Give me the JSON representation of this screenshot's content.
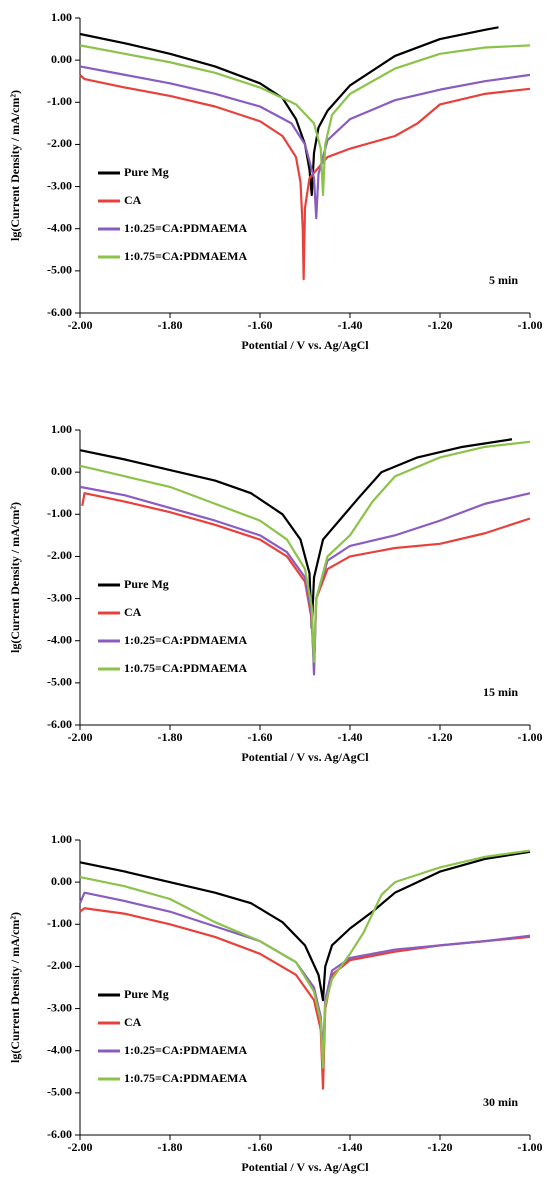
{
  "chart_data": [
    {
      "type": "line",
      "xlabel": "Potential / V vs. Ag/AgCl",
      "ylabel": "lg(Current Density / mA/cm²)",
      "annotation": "5 min",
      "xlim": [
        -2,
        -1
      ],
      "ylim": [
        -6,
        1
      ],
      "xticks": [
        {
          "value": -2,
          "label": "-2.00"
        },
        {
          "value": -1.8,
          "label": "-1.80"
        },
        {
          "value": -1.6,
          "label": "-1.60"
        },
        {
          "value": -1.4,
          "label": "-1.40"
        },
        {
          "value": -1.2,
          "label": "-1.20"
        },
        {
          "value": -1,
          "label": "-1.00"
        }
      ],
      "yticks": [
        {
          "value": 1,
          "label": "1.00"
        },
        {
          "value": 0,
          "label": "0.00"
        },
        {
          "value": -1,
          "label": "-1.00"
        },
        {
          "value": -2,
          "label": "-2.00"
        },
        {
          "value": -3,
          "label": "-3.00"
        },
        {
          "value": -4,
          "label": "-4.00"
        },
        {
          "value": -5,
          "label": "-5.00"
        },
        {
          "value": -6,
          "label": "-6.00"
        }
      ],
      "series": [
        {
          "name": "Pure Mg",
          "color": "#000000",
          "x": [
            -2,
            -1.9,
            -1.8,
            -1.7,
            -1.6,
            -1.55,
            -1.52,
            -1.5,
            -1.49,
            -1.485,
            -1.48,
            -1.47,
            -1.45,
            -1.4,
            -1.3,
            -1.2,
            -1.1,
            -1.07
          ],
          "values": [
            0.62,
            0.4,
            0.15,
            -0.15,
            -0.55,
            -0.9,
            -1.4,
            -2.0,
            -2.6,
            -3.2,
            -2.2,
            -1.6,
            -1.2,
            -0.6,
            0.1,
            0.5,
            0.72,
            0.78
          ]
        },
        {
          "name": "CA",
          "color": "#e8413c",
          "x": [
            -2,
            -1.99,
            -1.9,
            -1.8,
            -1.7,
            -1.6,
            -1.55,
            -1.52,
            -1.51,
            -1.505,
            -1.503,
            -1.5,
            -1.49,
            -1.45,
            -1.4,
            -1.3,
            -1.25,
            -1.2,
            -1.1,
            -1
          ],
          "values": [
            -0.35,
            -0.45,
            -0.65,
            -0.85,
            -1.1,
            -1.45,
            -1.8,
            -2.3,
            -2.9,
            -4.0,
            -5.2,
            -3.5,
            -2.8,
            -2.3,
            -2.1,
            -1.8,
            -1.5,
            -1.05,
            -0.8,
            -0.68
          ]
        },
        {
          "name": "1:0.25=CA:PDMAEMA",
          "color": "#8a5cc0",
          "x": [
            -2,
            -1.9,
            -1.8,
            -1.7,
            -1.6,
            -1.53,
            -1.5,
            -1.48,
            -1.475,
            -1.47,
            -1.45,
            -1.4,
            -1.3,
            -1.2,
            -1.1,
            -1
          ],
          "values": [
            -0.15,
            -0.35,
            -0.55,
            -0.8,
            -1.1,
            -1.5,
            -2.0,
            -2.8,
            -3.75,
            -2.7,
            -1.9,
            -1.4,
            -0.95,
            -0.7,
            -0.5,
            -0.35
          ]
        },
        {
          "name": "1:0.75=CA:PDMAEMA",
          "color": "#8bc34a",
          "x": [
            -2,
            -1.9,
            -1.8,
            -1.7,
            -1.6,
            -1.52,
            -1.48,
            -1.465,
            -1.46,
            -1.455,
            -1.44,
            -1.4,
            -1.3,
            -1.2,
            -1.1,
            -1
          ],
          "values": [
            0.35,
            0.15,
            -0.05,
            -0.3,
            -0.65,
            -1.05,
            -1.5,
            -2.1,
            -3.2,
            -2.0,
            -1.3,
            -0.8,
            -0.2,
            0.15,
            0.3,
            0.35
          ]
        }
      ]
    },
    {
      "type": "line",
      "xlabel": "Potential / V vs. Ag/AgCl",
      "ylabel": "lg(Current Density / mA/cm²)",
      "annotation": "15 min",
      "xlim": [
        -2,
        -1
      ],
      "ylim": [
        -6,
        1
      ],
      "xticks": [
        {
          "value": -2,
          "label": "-2.00"
        },
        {
          "value": -1.8,
          "label": "-1.80"
        },
        {
          "value": -1.6,
          "label": "-1.60"
        },
        {
          "value": -1.4,
          "label": "-1.40"
        },
        {
          "value": -1.2,
          "label": "-1.20"
        },
        {
          "value": -1,
          "label": "-1.00"
        }
      ],
      "yticks": [
        {
          "value": 1,
          "label": "1.00"
        },
        {
          "value": 0,
          "label": "0.00"
        },
        {
          "value": -1,
          "label": "-1.00"
        },
        {
          "value": -2,
          "label": "-2.00"
        },
        {
          "value": -3,
          "label": "-3.00"
        },
        {
          "value": -4,
          "label": "-4.00"
        },
        {
          "value": -5,
          "label": "-5.00"
        },
        {
          "value": -6,
          "label": "-6.00"
        }
      ],
      "series": [
        {
          "name": "Pure Mg",
          "color": "#000000",
          "x": [
            -2,
            -1.9,
            -1.8,
            -1.7,
            -1.62,
            -1.55,
            -1.51,
            -1.49,
            -1.485,
            -1.48,
            -1.46,
            -1.42,
            -1.38,
            -1.33,
            -1.25,
            -1.15,
            -1.04
          ],
          "values": [
            0.52,
            0.3,
            0.05,
            -0.2,
            -0.5,
            -1.0,
            -1.6,
            -2.4,
            -3.7,
            -2.5,
            -1.6,
            -1.1,
            -0.6,
            0.0,
            0.35,
            0.6,
            0.78
          ]
        },
        {
          "name": "CA",
          "color": "#e8413c",
          "x": [
            -1.995,
            -1.99,
            -1.9,
            -1.8,
            -1.7,
            -1.6,
            -1.54,
            -1.5,
            -1.485,
            -1.48,
            -1.475,
            -1.45,
            -1.4,
            -1.3,
            -1.2,
            -1.1,
            -1
          ],
          "values": [
            -0.8,
            -0.5,
            -0.7,
            -0.95,
            -1.25,
            -1.6,
            -2.0,
            -2.6,
            -3.5,
            -4.6,
            -3.0,
            -2.3,
            -2.0,
            -1.8,
            -1.7,
            -1.45,
            -1.1
          ]
        },
        {
          "name": "1:0.25=CA:PDMAEMA",
          "color": "#8a5cc0",
          "x": [
            -2,
            -1.9,
            -1.8,
            -1.7,
            -1.6,
            -1.54,
            -1.5,
            -1.485,
            -1.48,
            -1.475,
            -1.45,
            -1.4,
            -1.3,
            -1.2,
            -1.1,
            -1
          ],
          "values": [
            -0.35,
            -0.55,
            -0.85,
            -1.15,
            -1.5,
            -1.9,
            -2.5,
            -3.4,
            -4.8,
            -3.0,
            -2.1,
            -1.75,
            -1.5,
            -1.15,
            -0.75,
            -0.5
          ]
        },
        {
          "name": "1:0.75=CA:PDMAEMA",
          "color": "#8bc34a",
          "x": [
            -2,
            -1.9,
            -1.8,
            -1.7,
            -1.6,
            -1.54,
            -1.5,
            -1.485,
            -1.48,
            -1.475,
            -1.45,
            -1.4,
            -1.35,
            -1.3,
            -1.2,
            -1.1,
            -1
          ],
          "values": [
            0.15,
            -0.1,
            -0.35,
            -0.75,
            -1.15,
            -1.6,
            -2.3,
            -3.2,
            -4.5,
            -3.0,
            -2.0,
            -1.5,
            -0.7,
            -0.1,
            0.35,
            0.6,
            0.72
          ]
        }
      ]
    },
    {
      "type": "line",
      "xlabel": "Potential / V vs. Ag/AgCl",
      "ylabel": "lg(Current Density / mA/cm²)",
      "annotation": "30 min",
      "xlim": [
        -2,
        -1
      ],
      "ylim": [
        -6,
        1
      ],
      "xticks": [
        {
          "value": -2,
          "label": "-2.00"
        },
        {
          "value": -1.8,
          "label": "-1.80"
        },
        {
          "value": -1.6,
          "label": "-1.60"
        },
        {
          "value": -1.4,
          "label": "-1.40"
        },
        {
          "value": -1.2,
          "label": "-1.20"
        },
        {
          "value": -1,
          "label": "-1.00"
        }
      ],
      "yticks": [
        {
          "value": 1,
          "label": "1.00"
        },
        {
          "value": 0,
          "label": "0.00"
        },
        {
          "value": -1,
          "label": "-1.00"
        },
        {
          "value": -2,
          "label": "-2.00"
        },
        {
          "value": -3,
          "label": "-3.00"
        },
        {
          "value": -4,
          "label": "-4.00"
        },
        {
          "value": -5,
          "label": "-5.00"
        },
        {
          "value": -6,
          "label": "-6.00"
        }
      ],
      "series": [
        {
          "name": "Pure Mg",
          "color": "#000000",
          "x": [
            -2,
            -1.9,
            -1.8,
            -1.7,
            -1.62,
            -1.55,
            -1.5,
            -1.47,
            -1.46,
            -1.455,
            -1.44,
            -1.4,
            -1.35,
            -1.3,
            -1.2,
            -1.1,
            -1
          ],
          "values": [
            0.47,
            0.25,
            0.0,
            -0.25,
            -0.5,
            -0.95,
            -1.5,
            -2.2,
            -2.8,
            -2.0,
            -1.5,
            -1.1,
            -0.7,
            -0.25,
            0.25,
            0.55,
            0.72
          ]
        },
        {
          "name": "CA",
          "color": "#e8413c",
          "x": [
            -2,
            -1.99,
            -1.9,
            -1.8,
            -1.7,
            -1.6,
            -1.52,
            -1.48,
            -1.465,
            -1.46,
            -1.455,
            -1.44,
            -1.4,
            -1.3,
            -1.2,
            -1.1,
            -1
          ],
          "values": [
            -0.7,
            -0.62,
            -0.75,
            -1.0,
            -1.3,
            -1.7,
            -2.2,
            -2.8,
            -3.5,
            -4.9,
            -3.0,
            -2.2,
            -1.85,
            -1.65,
            -1.5,
            -1.4,
            -1.3
          ]
        },
        {
          "name": "1:0.25=CA:PDMAEMA",
          "color": "#8a5cc0",
          "x": [
            -2,
            -1.99,
            -1.9,
            -1.8,
            -1.7,
            -1.6,
            -1.52,
            -1.48,
            -1.465,
            -1.46,
            -1.455,
            -1.44,
            -1.4,
            -1.3,
            -1.2,
            -1.1,
            -1
          ],
          "values": [
            -0.5,
            -0.25,
            -0.45,
            -0.7,
            -1.05,
            -1.4,
            -1.9,
            -2.5,
            -3.2,
            -4.1,
            -2.8,
            -2.1,
            -1.8,
            -1.6,
            -1.5,
            -1.4,
            -1.27
          ]
        },
        {
          "name": "1:0.75=CA:PDMAEMA",
          "color": "#8bc34a",
          "x": [
            -2,
            -1.9,
            -1.8,
            -1.7,
            -1.6,
            -1.52,
            -1.48,
            -1.465,
            -1.46,
            -1.455,
            -1.44,
            -1.4,
            -1.37,
            -1.33,
            -1.3,
            -1.2,
            -1.1,
            -1
          ],
          "values": [
            0.12,
            -0.1,
            -0.4,
            -0.95,
            -1.4,
            -1.9,
            -2.6,
            -3.3,
            -4.4,
            -2.9,
            -2.3,
            -1.7,
            -1.2,
            -0.3,
            0.0,
            0.35,
            0.6,
            0.75
          ]
        }
      ]
    }
  ]
}
